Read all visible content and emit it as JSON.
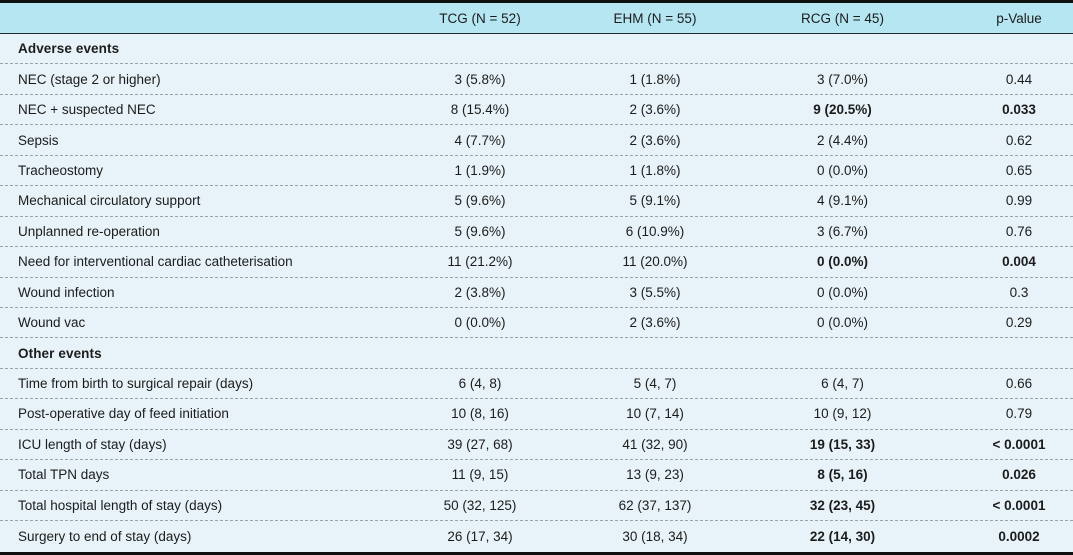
{
  "table": {
    "header": {
      "columns": [
        "TCG (N = 52)",
        "EHM (N = 55)",
        "RCG (N = 45)",
        "p-Value"
      ]
    },
    "sections": [
      {
        "title": "Adverse events",
        "rows": [
          {
            "label": "NEC (stage 2 or higher)",
            "tcg": "3 (5.8%)",
            "ehm": "1 (1.8%)",
            "rcg": "3 (7.0%)",
            "p": "0.44",
            "sig": false
          },
          {
            "label": "NEC + suspected NEC",
            "tcg": "8 (15.4%)",
            "ehm": "2 (3.6%)",
            "rcg": "9 (20.5%)",
            "p": "0.033",
            "sig": true
          },
          {
            "label": "Sepsis",
            "tcg": "4 (7.7%)",
            "ehm": "2 (3.6%)",
            "rcg": "2 (4.4%)",
            "p": "0.62",
            "sig": false
          },
          {
            "label": "Tracheostomy",
            "tcg": "1 (1.9%)",
            "ehm": "1 (1.8%)",
            "rcg": "0 (0.0%)",
            "p": "0.65",
            "sig": false
          },
          {
            "label": "Mechanical circulatory support",
            "tcg": "5 (9.6%)",
            "ehm": "5 (9.1%)",
            "rcg": "4 (9.1%)",
            "p": "0.99",
            "sig": false
          },
          {
            "label": "Unplanned re-operation",
            "tcg": "5 (9.6%)",
            "ehm": "6 (10.9%)",
            "rcg": "3 (6.7%)",
            "p": "0.76",
            "sig": false
          },
          {
            "label": "Need for interventional cardiac catheterisation",
            "tcg": "11 (21.2%)",
            "ehm": "11 (20.0%)",
            "rcg": "0 (0.0%)",
            "p": "0.004",
            "sig": true
          },
          {
            "label": "Wound infection",
            "tcg": "2 (3.8%)",
            "ehm": "3 (5.5%)",
            "rcg": "0 (0.0%)",
            "p": "0.3",
            "sig": false
          },
          {
            "label": "Wound vac",
            "tcg": "0 (0.0%)",
            "ehm": "2 (3.6%)",
            "rcg": "0 (0.0%)",
            "p": "0.29",
            "sig": false
          }
        ]
      },
      {
        "title": "Other events",
        "rows": [
          {
            "label": "Time from birth to surgical repair (days)",
            "tcg": "6 (4, 8)",
            "ehm": "5 (4, 7)",
            "rcg": "6 (4, 7)",
            "p": "0.66",
            "sig": false
          },
          {
            "label": "Post-operative day of feed initiation",
            "tcg": "10 (8, 16)",
            "ehm": "10 (7, 14)",
            "rcg": "10 (9, 12)",
            "p": "0.79",
            "sig": false
          },
          {
            "label": "ICU length of stay (days)",
            "tcg": "39 (27, 68)",
            "ehm": "41 (32, 90)",
            "rcg": "19 (15, 33)",
            "p": "< 0.0001",
            "sig": true
          },
          {
            "label": "Total TPN days",
            "tcg": "11 (9, 15)",
            "ehm": "13 (9, 23)",
            "rcg": "8 (5, 16)",
            "p": "0.026",
            "sig": true
          },
          {
            "label": "Total hospital length of stay (days)",
            "tcg": "50 (32, 125)",
            "ehm": "62 (37, 137)",
            "rcg": "32 (23, 45)",
            "p": "< 0.0001",
            "sig": true
          },
          {
            "label": "Surgery to end of stay (days)",
            "tcg": "26 (17, 34)",
            "ehm": "30 (18, 34)",
            "rcg": "22 (14, 30)",
            "p": "0.0002",
            "sig": true
          }
        ]
      }
    ]
  }
}
